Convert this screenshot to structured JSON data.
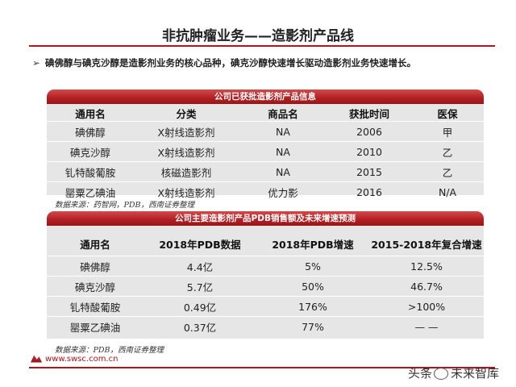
{
  "title": "非抗肿瘤业务——造影剂产品线",
  "bullet": "碘佛醇与碘克沙醇是造影剂业务的核心品种，碘克沙醇快速增长驱动造影剂业务快速增长。",
  "table1": {
    "banner": "公司已获批造影剂产品信息",
    "headers": [
      "通用名",
      "分类",
      "商品名",
      "获批时间",
      "医保"
    ],
    "rows": [
      [
        "碘佛醇",
        "X射线造影剂",
        "NA",
        "2006",
        "甲"
      ],
      [
        "碘克沙醇",
        "X射线造影剂",
        "NA",
        "2010",
        "乙"
      ],
      [
        "钆特酸葡胺",
        "核磁造影剂",
        "NA",
        "2015",
        "乙"
      ],
      [
        "罂粟乙碘油",
        "X射线造影剂",
        "优力影",
        "2016",
        "N/A"
      ]
    ],
    "source": "数据来源：药智网，PDB，西南证券整理"
  },
  "table2": {
    "banner": "公司主要造影剂产品PDB销售额及未来增速预测",
    "headers": [
      "通用名",
      "2018年PDB数据",
      "2018年PDB增速",
      "2015-2018年复合增速"
    ],
    "rows": [
      [
        "碘佛醇",
        "4.4亿",
        "5%",
        "12.5%"
      ],
      [
        "碘克沙醇",
        "5.7亿",
        "50%",
        "46.7%"
      ],
      [
        "钆特酸葡胺",
        "0.49亿",
        "176%",
        ">100%"
      ],
      [
        "罂粟乙碘油",
        "0.37亿",
        "77%",
        "— —"
      ]
    ],
    "source": "数据来源：PDB，西南证券整理"
  },
  "footer": {
    "site": "www.swsc.com.cn",
    "watermark_prefix": "头条",
    "watermark_name": "未来智库"
  },
  "colors": {
    "accent": "#b5121b",
    "panel": "#e6e6e6"
  }
}
